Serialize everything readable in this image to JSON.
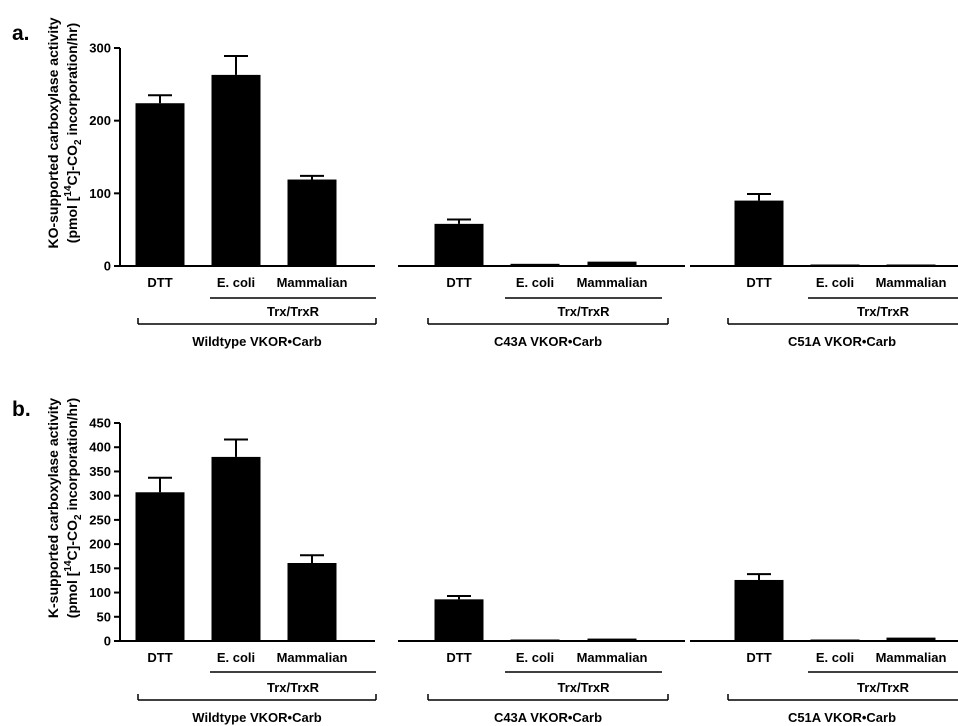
{
  "chart_data": [
    {
      "type": "bar",
      "panel_label": "a.",
      "ylabel_line1": "KO-supported carboxylase activity",
      "ylabel_line2_pre": "(pmol [",
      "ylabel_line2_sup": "14",
      "ylabel_line2_mid": "C]-CO",
      "ylabel_line2_sub": "2",
      "ylabel_line2_post": " incorporation/hr)",
      "ylim": [
        0,
        300
      ],
      "yticks": [
        0,
        100,
        200,
        300
      ],
      "categories": [
        "DTT",
        "E. coli",
        "Mammalian",
        "DTT",
        "E. coli",
        "Mammalian",
        "DTT",
        "E. coli",
        "Mammalian"
      ],
      "values": [
        224,
        263,
        119,
        58,
        3,
        6,
        90,
        2,
        2
      ],
      "errors": [
        11,
        26,
        5,
        6,
        0,
        0,
        9,
        0,
        0
      ],
      "subgroup_label": "Trx/TrxR",
      "groups": [
        "Wildtype VKOR•Carb",
        "C43A VKOR•Carb",
        "C51A VKOR•Carb"
      ]
    },
    {
      "type": "bar",
      "panel_label": "b.",
      "ylabel_line1": "K-supported carboxylase activity",
      "ylabel_line2_pre": "(pmol [",
      "ylabel_line2_sup": "14",
      "ylabel_line2_mid": "C]-CO",
      "ylabel_line2_sub": "2",
      "ylabel_line2_post": " incorporation/hr)",
      "ylim": [
        0,
        450
      ],
      "yticks": [
        0,
        50,
        100,
        150,
        200,
        250,
        300,
        350,
        400,
        450
      ],
      "categories": [
        "DTT",
        "E. coli",
        "Mammalian",
        "DTT",
        "E. coli",
        "Mammalian",
        "DTT",
        "E. coli",
        "Mammalian"
      ],
      "values": [
        307,
        380,
        161,
        86,
        3,
        5,
        126,
        1,
        7
      ],
      "errors": [
        30,
        36,
        16,
        7,
        0,
        0,
        12,
        0,
        0
      ],
      "subgroup_label": "Trx/TrxR",
      "groups": [
        "Wildtype VKOR•Carb",
        "C43A VKOR•Carb",
        "C51A VKOR•Carb"
      ]
    }
  ]
}
